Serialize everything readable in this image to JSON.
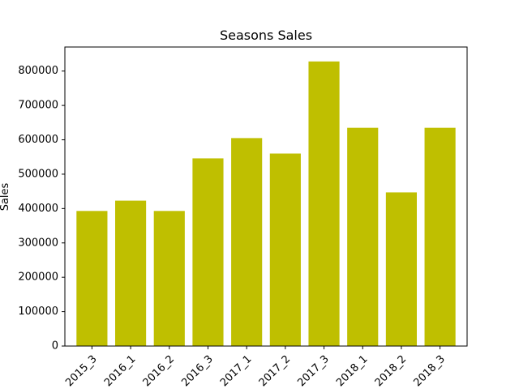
{
  "chart_data": {
    "type": "bar",
    "title": "Seasons Sales",
    "xlabel": "",
    "ylabel": "Sales",
    "categories": [
      "2015_3",
      "2016_1",
      "2016_2",
      "2016_3",
      "2017_1",
      "2017_2",
      "2017_3",
      "2018_1",
      "2018_2",
      "2018_3"
    ],
    "values": [
      393000,
      423000,
      393000,
      546000,
      605000,
      560000,
      828000,
      635000,
      447000,
      635000
    ],
    "ylim": [
      0,
      870000
    ],
    "yticks": [
      0,
      100000,
      200000,
      300000,
      400000,
      500000,
      600000,
      700000,
      800000
    ],
    "bar_color": "#bfbf00",
    "grid": false,
    "legend": "none"
  }
}
